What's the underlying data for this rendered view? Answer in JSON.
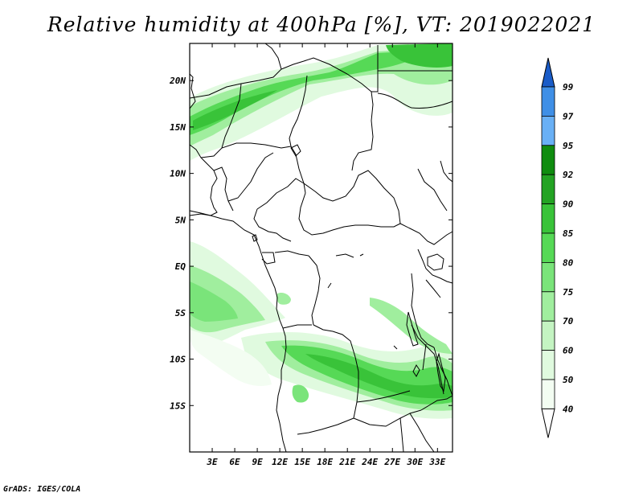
{
  "title": "Relative humidity at 400hPa [%], VT: 2019022021",
  "footer": "GrADS: IGES/COLA",
  "map": {
    "lon_range": [
      0,
      35
    ],
    "lat_range": [
      -20,
      24
    ],
    "lat_ticks": [
      "20N",
      "15N",
      "10N",
      "5N",
      "EQ",
      "5S",
      "10S",
      "15S"
    ],
    "lat_values": [
      20,
      15,
      10,
      5,
      0,
      -5,
      -10,
      -15
    ],
    "lon_ticks": [
      "3E",
      "6E",
      "9E",
      "12E",
      "15E",
      "18E",
      "21E",
      "24E",
      "27E",
      "30E",
      "33E"
    ],
    "lon_values": [
      3,
      6,
      9,
      12,
      15,
      18,
      21,
      24,
      27,
      30,
      33
    ]
  },
  "colorbar": {
    "labels": [
      "99",
      "97",
      "95",
      "92",
      "90",
      "85",
      "80",
      "75",
      "70",
      "60",
      "50",
      "40"
    ],
    "colors": [
      "#1a5cc8",
      "#3f8fe6",
      "#69b0f5",
      "#0f8c0f",
      "#23a323",
      "#39c339",
      "#56d956",
      "#7ae47a",
      "#a0ee9e",
      "#c4f4c2",
      "#e0fadf",
      "#f3fdf2",
      "#ffffff"
    ]
  }
}
